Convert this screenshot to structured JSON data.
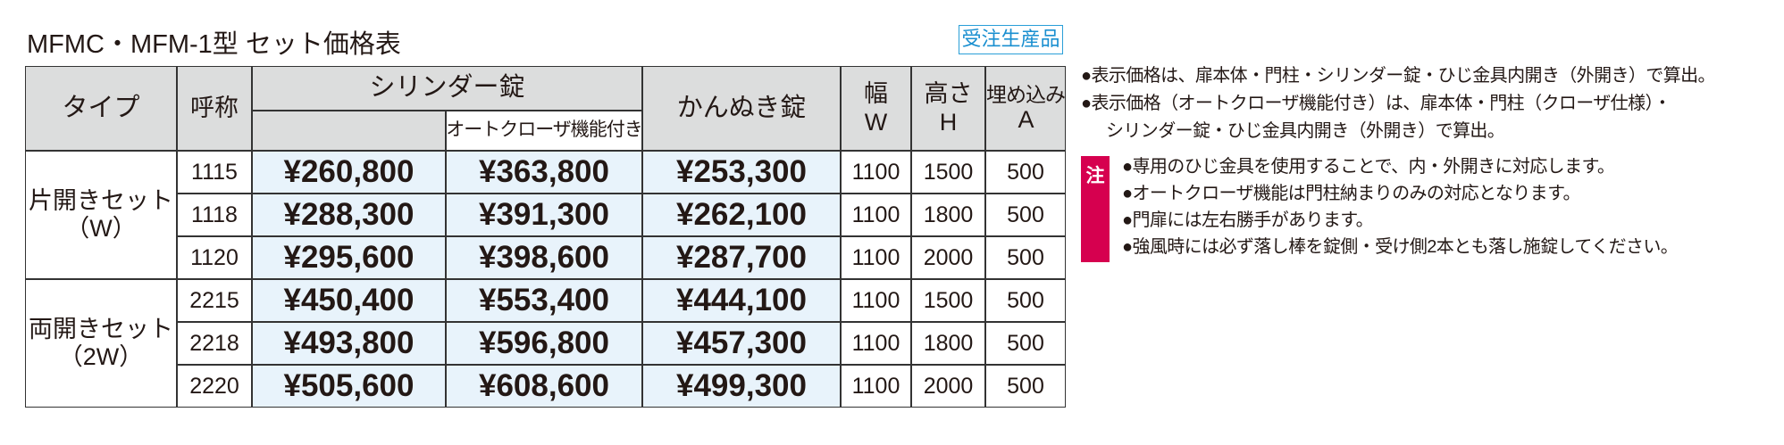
{
  "title": "MFMC・MFM-1型 セット価格表",
  "badge": "受注生産品",
  "table": {
    "headers": {
      "type": "タイプ",
      "code": "呼称",
      "cylinder": "シリンダー錠",
      "closer": "オートクローザ機能付き",
      "kannuki": "かんぬき錠",
      "width": [
        "幅",
        "W"
      ],
      "height": [
        "高さ",
        "H"
      ],
      "embed": [
        "埋め込み",
        "A"
      ]
    },
    "groups": [
      {
        "type": [
          "片開きセット",
          "（W）"
        ],
        "rows": [
          [
            "1115",
            "¥260,800",
            "¥363,800",
            "¥253,300",
            "1100",
            "1500",
            "500"
          ],
          [
            "1118",
            "¥288,300",
            "¥391,300",
            "¥262,100",
            "1100",
            "1800",
            "500"
          ],
          [
            "1120",
            "¥295,600",
            "¥398,600",
            "¥287,700",
            "1100",
            "2000",
            "500"
          ]
        ]
      },
      {
        "type": [
          "両開きセット",
          "（2W）"
        ],
        "rows": [
          [
            "2215",
            "¥450,400",
            "¥553,400",
            "¥444,100",
            "1100",
            "1500",
            "500"
          ],
          [
            "2218",
            "¥493,800",
            "¥596,800",
            "¥457,300",
            "1100",
            "1800",
            "500"
          ],
          [
            "2220",
            "¥505,600",
            "¥608,600",
            "¥499,300",
            "1100",
            "2000",
            "500"
          ]
        ]
      }
    ]
  },
  "notes": [
    "●表示価格は、扉本体・門柱・シリンダー錠・ひじ金具内開き（外開き）で算出。",
    "●表示価格（オートクローザ機能付き）は、扉本体・門柱（クローザ仕様）・",
    "シリンダー錠・ひじ金具内開き（外開き）で算出。"
  ],
  "caution": {
    "label": "注",
    "lines": [
      "●専用のひじ金具を使用することで、内・外開きに対応します。",
      "●オートクローザ機能は門柱納まりのみの対応となります。",
      "●門扉には左右勝手があります。",
      "●強風時には必ず落し棒を錠側・受け側2本とも落し施錠してください。"
    ]
  }
}
